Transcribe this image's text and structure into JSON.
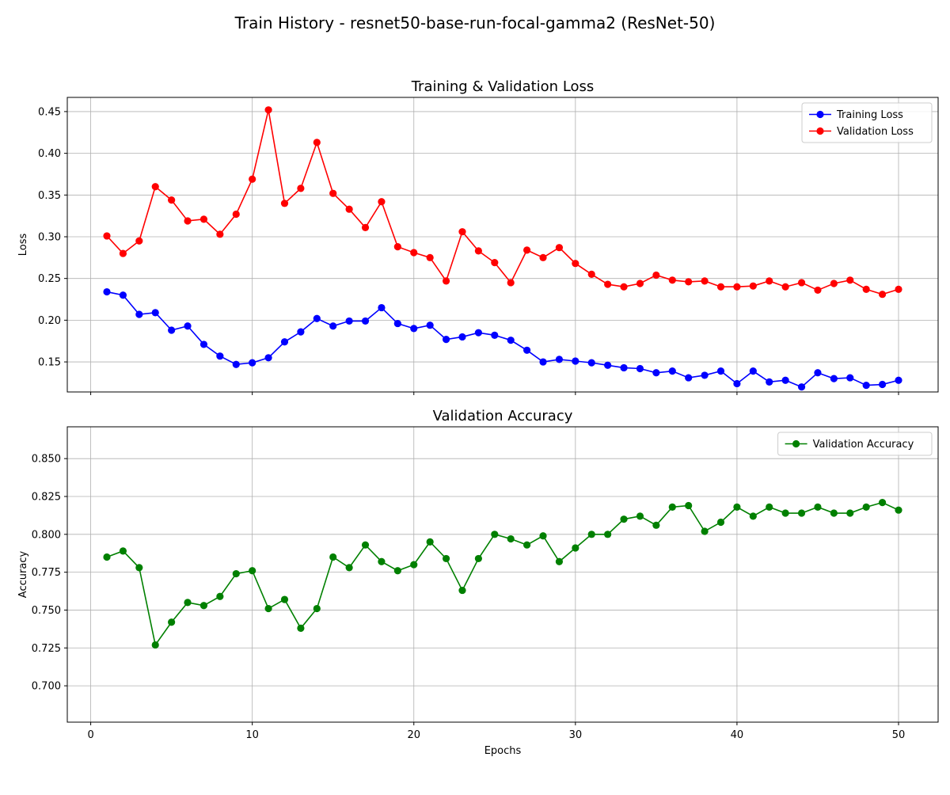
{
  "figure": {
    "suptitle": "Train History - resnet50-base-run-focal-gamma2 (ResNet-50)"
  },
  "chart_data": [
    {
      "type": "line",
      "title": "Training & Validation Loss",
      "xlabel": "",
      "ylabel": "Loss",
      "xlim": [
        -1.45,
        52.45
      ],
      "ylim": [
        0.114,
        0.467
      ],
      "xticks": [
        0,
        10,
        20,
        30,
        40,
        50
      ],
      "yticks": [
        0.15,
        0.2,
        0.25,
        0.3,
        0.35,
        0.4,
        0.45
      ],
      "ytick_labels": [
        "0.15",
        "0.20",
        "0.25",
        "0.30",
        "0.35",
        "0.40",
        "0.45"
      ],
      "show_xtick_labels": false,
      "grid": true,
      "legend_position": "upper right",
      "x": [
        1,
        2,
        3,
        4,
        5,
        6,
        7,
        8,
        9,
        10,
        11,
        12,
        13,
        14,
        15,
        16,
        17,
        18,
        19,
        20,
        21,
        22,
        23,
        24,
        25,
        26,
        27,
        28,
        29,
        30,
        31,
        32,
        33,
        34,
        35,
        36,
        37,
        38,
        39,
        40,
        41,
        42,
        43,
        44,
        45,
        46,
        47,
        48,
        49,
        50
      ],
      "series": [
        {
          "name": "Training Loss",
          "color": "#0000ff",
          "values": [
            0.234,
            0.23,
            0.207,
            0.209,
            0.188,
            0.193,
            0.171,
            0.157,
            0.147,
            0.149,
            0.155,
            0.174,
            0.186,
            0.202,
            0.193,
            0.199,
            0.199,
            0.215,
            0.196,
            0.19,
            0.194,
            0.177,
            0.18,
            0.185,
            0.182,
            0.176,
            0.164,
            0.15,
            0.153,
            0.151,
            0.149,
            0.146,
            0.143,
            0.142,
            0.137,
            0.139,
            0.131,
            0.134,
            0.139,
            0.124,
            0.139,
            0.126,
            0.128,
            0.12,
            0.137,
            0.13,
            0.131,
            0.122,
            0.123,
            0.128
          ]
        },
        {
          "name": "Validation Loss",
          "color": "#ff0000",
          "values": [
            0.301,
            0.28,
            0.295,
            0.36,
            0.344,
            0.319,
            0.321,
            0.303,
            0.327,
            0.369,
            0.452,
            0.34,
            0.358,
            0.413,
            0.352,
            0.333,
            0.311,
            0.342,
            0.288,
            0.281,
            0.275,
            0.247,
            0.306,
            0.283,
            0.269,
            0.245,
            0.284,
            0.275,
            0.287,
            0.268,
            0.255,
            0.243,
            0.24,
            0.244,
            0.254,
            0.248,
            0.246,
            0.247,
            0.24,
            0.24,
            0.241,
            0.247,
            0.24,
            0.245,
            0.236,
            0.244,
            0.248,
            0.237,
            0.231,
            0.237
          ]
        }
      ]
    },
    {
      "type": "line",
      "title": "Validation Accuracy",
      "xlabel": "Epochs",
      "ylabel": "Accuracy",
      "xlim": [
        -1.45,
        52.45
      ],
      "ylim": [
        0.676,
        0.871
      ],
      "xticks": [
        0,
        10,
        20,
        30,
        40,
        50
      ],
      "xtick_labels": [
        "0",
        "10",
        "20",
        "30",
        "40",
        "50"
      ],
      "yticks": [
        0.7,
        0.725,
        0.75,
        0.775,
        0.8,
        0.825,
        0.85
      ],
      "ytick_labels": [
        "0.700",
        "0.725",
        "0.750",
        "0.775",
        "0.800",
        "0.825",
        "0.850"
      ],
      "show_xtick_labels": true,
      "grid": true,
      "legend_position": "upper right",
      "x": [
        1,
        2,
        3,
        4,
        5,
        6,
        7,
        8,
        9,
        10,
        11,
        12,
        13,
        14,
        15,
        16,
        17,
        18,
        19,
        20,
        21,
        22,
        23,
        24,
        25,
        26,
        27,
        28,
        29,
        30,
        31,
        32,
        33,
        34,
        35,
        36,
        37,
        38,
        39,
        40,
        41,
        42,
        43,
        44,
        45,
        46,
        47,
        48,
        49,
        50
      ],
      "series": [
        {
          "name": "Validation Accuracy",
          "color": "#008000",
          "values": [
            0.785,
            0.789,
            0.778,
            0.727,
            0.742,
            0.755,
            0.753,
            0.759,
            0.774,
            0.776,
            0.751,
            0.757,
            0.738,
            0.751,
            0.785,
            0.778,
            0.793,
            0.782,
            0.776,
            0.78,
            0.795,
            0.784,
            0.763,
            0.784,
            0.8,
            0.797,
            0.793,
            0.799,
            0.782,
            0.791,
            0.8,
            0.8,
            0.81,
            0.812,
            0.806,
            0.818,
            0.819,
            0.802,
            0.808,
            0.818,
            0.812,
            0.818,
            0.814,
            0.814,
            0.818,
            0.814,
            0.814,
            0.818,
            0.821,
            0.816
          ]
        }
      ]
    }
  ]
}
